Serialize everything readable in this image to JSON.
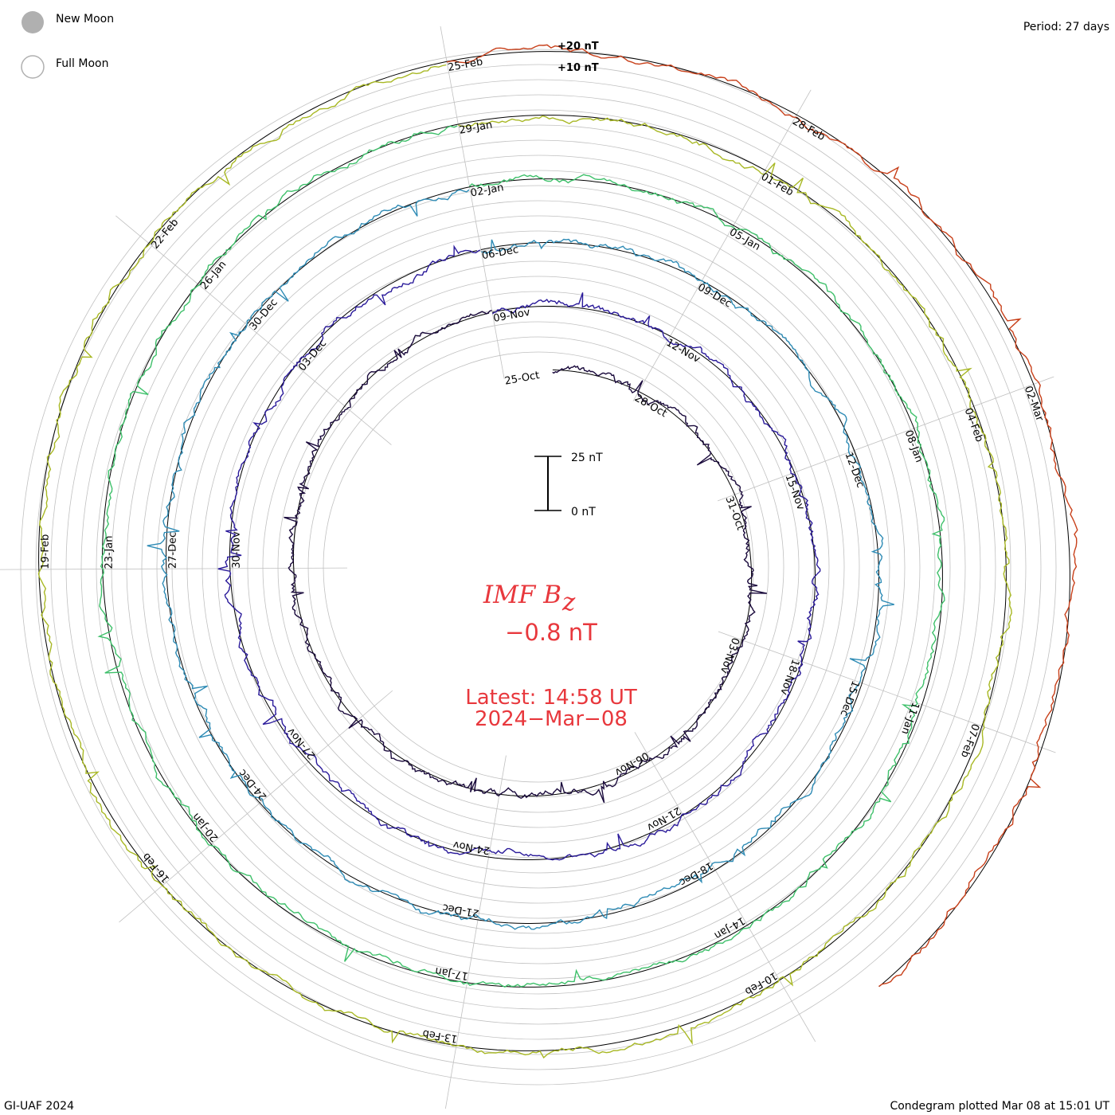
{
  "legend": {
    "new_moon": "New Moon",
    "full_moon": "Full Moon"
  },
  "period": "Period: 27 days",
  "footer": {
    "left": "GI-UAF 2024",
    "right": "Condegram plotted Mar 08 at 15:01 UT"
  },
  "scale": {
    "top_label": "25 nT",
    "bottom_label": "0 nT",
    "ring_labels": [
      "+20 nT",
      "+10 nT"
    ]
  },
  "center": {
    "quantity": "IMF B",
    "subscript": "z",
    "value": "−0.8 nT",
    "latest": "Latest: 14:58 UT",
    "date": "2024−Mar−08"
  },
  "colors": {
    "grid": "#c0c0c0",
    "text_accent": "#e8383d",
    "moon_fill": "#b0b0b0"
  },
  "chart_data": {
    "type": "line",
    "style": "spiral condegram",
    "period_days": 27,
    "units": "nT",
    "revolutions": [
      {
        "name": "rev1",
        "color": "#1a0a3c",
        "dates": [
          "25-Oct",
          "28-Oct",
          "31-Oct",
          "03-Nov",
          "06-Nov"
        ]
      },
      {
        "name": "rev2",
        "color": "#2a1a9a",
        "dates": [
          "09-Nov",
          "12-Nov",
          "15-Nov",
          "18-Nov",
          "21-Nov",
          "24-Nov",
          "27-Nov",
          "30-Nov",
          "03-Dec"
        ]
      },
      {
        "name": "rev3",
        "color": "#2e8bb5",
        "dates": [
          "06-Dec",
          "09-Dec",
          "12-Dec",
          "15-Dec",
          "18-Dec",
          "21-Dec",
          "24-Dec",
          "27-Dec",
          "30-Dec"
        ]
      },
      {
        "name": "rev4",
        "color": "#3ec06a",
        "dates": [
          "02-Jan",
          "05-Jan",
          "08-Jan",
          "11-Jan",
          "14-Jan",
          "17-Jan",
          "20-Jan",
          "23-Jan",
          "26-Jan"
        ]
      },
      {
        "name": "rev5",
        "color": "#a8b824",
        "dates": [
          "29-Jan",
          "01-Feb",
          "04-Feb",
          "07-Feb",
          "10-Feb",
          "13-Feb",
          "16-Feb",
          "19-Feb",
          "22-Feb"
        ]
      },
      {
        "name": "rev6",
        "color": "#c8401a",
        "dates": [
          "25-Feb",
          "28-Feb",
          "02-Mar"
        ]
      }
    ]
  }
}
